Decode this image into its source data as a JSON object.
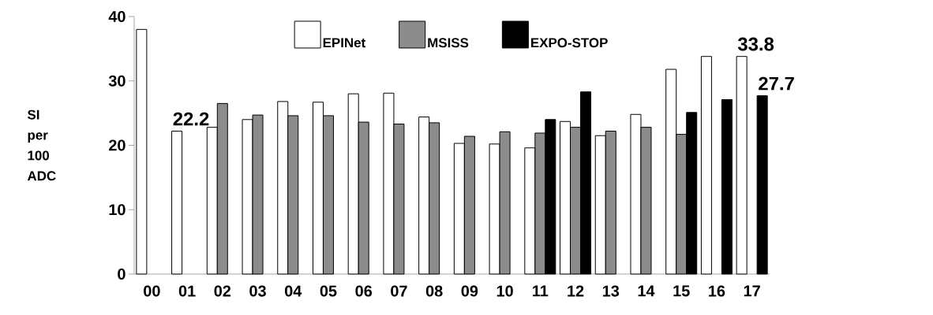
{
  "chart_data": {
    "type": "bar",
    "ylabel": "SI per 100 ADC",
    "categories": [
      "00",
      "01",
      "02",
      "03",
      "04",
      "05",
      "06",
      "07",
      "08",
      "09",
      "10",
      "11",
      "12",
      "13",
      "14",
      "15",
      "16",
      "17"
    ],
    "ylim": [
      0,
      40
    ],
    "yticks": [
      0,
      10,
      20,
      30,
      40
    ],
    "legend": "top",
    "series": [
      {
        "name": "EPINet",
        "color": "#ffffff",
        "values": [
          38.0,
          22.2,
          22.8,
          24.0,
          26.8,
          26.7,
          28.0,
          28.1,
          24.4,
          20.3,
          20.2,
          19.6,
          23.7,
          21.5,
          24.8,
          31.8,
          33.8,
          33.8
        ],
        "value_labels": [
          null,
          "22.2",
          null,
          null,
          null,
          null,
          null,
          null,
          null,
          null,
          null,
          null,
          null,
          null,
          null,
          null,
          null,
          "33.8"
        ]
      },
      {
        "name": "MSISS",
        "color": "#8c8c8c",
        "values": [
          null,
          null,
          26.5,
          24.7,
          24.6,
          24.6,
          23.6,
          23.3,
          23.5,
          21.4,
          22.1,
          21.9,
          22.8,
          22.2,
          22.8,
          21.7,
          null,
          null
        ]
      },
      {
        "name": "EXPO-STOP",
        "color": "#000000",
        "values": [
          null,
          null,
          null,
          null,
          null,
          null,
          null,
          null,
          null,
          null,
          null,
          24.0,
          28.3,
          null,
          null,
          25.1,
          27.1,
          27.7
        ],
        "value_labels": [
          null,
          null,
          null,
          null,
          null,
          null,
          null,
          null,
          null,
          null,
          null,
          null,
          null,
          null,
          null,
          null,
          null,
          "27.7"
        ]
      }
    ]
  }
}
